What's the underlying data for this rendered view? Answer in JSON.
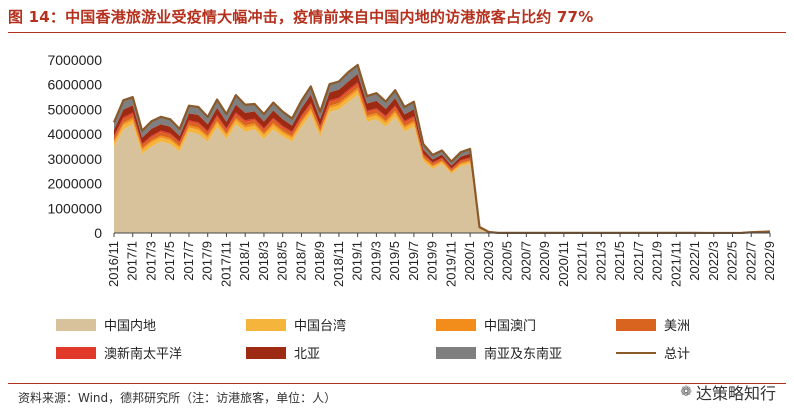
{
  "header": {
    "title": "图 14：中国香港旅游业受疫情大幅冲击，疫情前来自中国内地的访港旅客占比约 77%"
  },
  "footer": {
    "source": "资料来源：Wind，德邦研究所（注：访港旅客，单位：人）",
    "watermark": "达策略知行",
    "watermark_icon": "wechat-icon"
  },
  "chart_data": {
    "type": "area",
    "stacked": true,
    "ylim": [
      0,
      7000000
    ],
    "yticks": [
      0,
      1000000,
      2000000,
      3000000,
      4000000,
      5000000,
      6000000,
      7000000
    ],
    "ytick_labels": [
      "0",
      "1000000",
      "2000000",
      "3000000",
      "4000000",
      "5000000",
      "6000000",
      "7000000"
    ],
    "xtick_labels": [
      "2016/11",
      "2017/1",
      "2017/3",
      "2017/5",
      "2017/7",
      "2017/9",
      "2017/11",
      "2018/1",
      "2018/3",
      "2018/5",
      "2018/7",
      "2018/9",
      "2018/11",
      "2019/1",
      "2019/3",
      "2019/5",
      "2019/7",
      "2019/9",
      "2019/11",
      "2020/1",
      "2020/3",
      "2020/5",
      "2020/7",
      "2020/9",
      "2020/11",
      "2021/1",
      "2021/3",
      "2021/5",
      "2021/7",
      "2021/9",
      "2021/11",
      "2022/1",
      "2022/3",
      "2022/5",
      "2022/7",
      "2022/9"
    ],
    "legend_position": "bottom",
    "x": [
      "2016/11",
      "2016/12",
      "2017/1",
      "2017/2",
      "2017/3",
      "2017/4",
      "2017/5",
      "2017/6",
      "2017/7",
      "2017/8",
      "2017/9",
      "2017/10",
      "2017/11",
      "2017/12",
      "2018/1",
      "2018/2",
      "2018/3",
      "2018/4",
      "2018/5",
      "2018/6",
      "2018/7",
      "2018/8",
      "2018/9",
      "2018/10",
      "2018/11",
      "2018/12",
      "2019/1",
      "2019/2",
      "2019/3",
      "2019/4",
      "2019/5",
      "2019/6",
      "2019/7",
      "2019/8",
      "2019/9",
      "2019/10",
      "2019/11",
      "2019/12",
      "2020/1",
      "2020/2",
      "2020/3",
      "2020/4",
      "2020/5",
      "2020/6",
      "2020/7",
      "2020/8",
      "2020/9",
      "2020/10",
      "2020/11",
      "2020/12",
      "2021/1",
      "2021/2",
      "2021/3",
      "2021/4",
      "2021/5",
      "2021/6",
      "2021/7",
      "2021/8",
      "2021/9",
      "2021/10",
      "2021/11",
      "2021/12",
      "2022/1",
      "2022/2",
      "2022/3",
      "2022/4",
      "2022/5",
      "2022/6",
      "2022/7",
      "2022/8",
      "2022/9"
    ],
    "series": [
      {
        "name": "中国内地",
        "color": "#d8c29c",
        "values": [
          3500000,
          4200000,
          4400000,
          3200000,
          3500000,
          3700000,
          3600000,
          3300000,
          4100000,
          4000000,
          3700000,
          4300000,
          3800000,
          4400000,
          4100000,
          4200000,
          3800000,
          4200000,
          3900000,
          3700000,
          4300000,
          4800000,
          3900000,
          4900000,
          5000000,
          5300000,
          5600000,
          4500000,
          4600000,
          4300000,
          4700000,
          4100000,
          4300000,
          2900000,
          2600000,
          2800000,
          2400000,
          2700000,
          2800000,
          140000,
          25000,
          3000,
          2500,
          2500,
          2000,
          2000,
          2000,
          2500,
          3000,
          3000,
          2000,
          2000,
          2500,
          2500,
          2500,
          3000,
          3000,
          3000,
          3000,
          3000,
          3000,
          3000,
          2000,
          1000,
          500,
          500,
          1000,
          2000,
          20000,
          30000,
          40000
        ]
      },
      {
        "name": "中国台湾",
        "color": "#f5b53c",
        "values": [
          160000,
          170000,
          170000,
          160000,
          170000,
          160000,
          160000,
          150000,
          170000,
          180000,
          160000,
          160000,
          150000,
          160000,
          160000,
          150000,
          160000,
          160000,
          150000,
          140000,
          160000,
          170000,
          160000,
          160000,
          170000,
          170000,
          170000,
          160000,
          160000,
          150000,
          160000,
          150000,
          150000,
          110000,
          90000,
          80000,
          70000,
          80000,
          90000,
          20000,
          3000,
          300,
          300,
          300,
          300,
          300,
          300,
          300,
          300,
          300,
          300,
          300,
          300,
          300,
          300,
          300,
          300,
          300,
          300,
          300,
          300,
          300,
          300,
          300,
          300,
          300,
          300,
          300,
          2000,
          2500,
          3000
        ]
      },
      {
        "name": "中国澳门",
        "color": "#f28c1a",
        "values": [
          70000,
          90000,
          90000,
          80000,
          80000,
          80000,
          80000,
          70000,
          90000,
          90000,
          80000,
          90000,
          80000,
          90000,
          90000,
          90000,
          80000,
          90000,
          80000,
          80000,
          90000,
          90000,
          80000,
          90000,
          90000,
          100000,
          100000,
          90000,
          90000,
          90000,
          90000,
          80000,
          80000,
          60000,
          50000,
          50000,
          40000,
          50000,
          50000,
          10000,
          2000,
          300,
          300,
          300,
          300,
          300,
          300,
          300,
          300,
          300,
          300,
          300,
          300,
          300,
          300,
          300,
          300,
          300,
          300,
          300,
          300,
          300,
          300,
          300,
          300,
          300,
          300,
          300,
          1000,
          1500,
          2000
        ]
      },
      {
        "name": "美洲",
        "color": "#d9641f",
        "values": [
          140000,
          150000,
          140000,
          120000,
          130000,
          140000,
          140000,
          130000,
          140000,
          150000,
          130000,
          150000,
          140000,
          150000,
          140000,
          130000,
          140000,
          150000,
          140000,
          130000,
          140000,
          150000,
          130000,
          150000,
          150000,
          150000,
          150000,
          140000,
          140000,
          140000,
          150000,
          140000,
          140000,
          100000,
          80000,
          80000,
          70000,
          80000,
          80000,
          15000,
          2000,
          300,
          300,
          300,
          300,
          300,
          300,
          300,
          300,
          300,
          300,
          300,
          300,
          300,
          300,
          300,
          300,
          300,
          300,
          300,
          300,
          300,
          300,
          300,
          300,
          300,
          300,
          300,
          2000,
          2500,
          3000
        ]
      },
      {
        "name": "澳新南太平洋",
        "color": "#e23a2a",
        "values": [
          60000,
          80000,
          70000,
          50000,
          60000,
          60000,
          60000,
          50000,
          60000,
          60000,
          60000,
          70000,
          60000,
          80000,
          70000,
          60000,
          60000,
          60000,
          60000,
          50000,
          60000,
          60000,
          60000,
          70000,
          70000,
          80000,
          80000,
          60000,
          60000,
          60000,
          60000,
          60000,
          60000,
          40000,
          30000,
          30000,
          30000,
          40000,
          40000,
          8000,
          1000,
          200,
          200,
          200,
          200,
          200,
          200,
          200,
          200,
          200,
          200,
          200,
          200,
          200,
          200,
          200,
          200,
          200,
          200,
          200,
          200,
          200,
          200,
          200,
          200,
          200,
          200,
          200,
          1000,
          1500,
          2000
        ]
      },
      {
        "name": "北亚",
        "color": "#9e2a14",
        "values": [
          250000,
          300000,
          300000,
          250000,
          280000,
          260000,
          260000,
          230000,
          280000,
          300000,
          270000,
          300000,
          270000,
          320000,
          300000,
          290000,
          270000,
          300000,
          280000,
          250000,
          300000,
          330000,
          280000,
          320000,
          320000,
          330000,
          340000,
          290000,
          300000,
          280000,
          300000,
          270000,
          280000,
          170000,
          130000,
          130000,
          120000,
          140000,
          150000,
          20000,
          3000,
          300,
          300,
          300,
          300,
          300,
          300,
          300,
          300,
          300,
          300,
          300,
          300,
          300,
          300,
          300,
          300,
          300,
          300,
          300,
          300,
          300,
          300,
          300,
          300,
          300,
          300,
          300,
          2000,
          3000,
          4000
        ]
      },
      {
        "name": "南亚及东南亚",
        "color": "#7f7f7f",
        "values": [
          300000,
          380000,
          330000,
          280000,
          300000,
          300000,
          300000,
          280000,
          310000,
          320000,
          300000,
          330000,
          310000,
          380000,
          330000,
          300000,
          300000,
          320000,
          300000,
          280000,
          300000,
          330000,
          290000,
          330000,
          330000,
          380000,
          360000,
          300000,
          310000,
          300000,
          320000,
          300000,
          300000,
          220000,
          180000,
          170000,
          160000,
          180000,
          190000,
          30000,
          4000,
          500,
          500,
          500,
          500,
          500,
          500,
          500,
          500,
          500,
          500,
          500,
          500,
          500,
          500,
          500,
          500,
          500,
          500,
          500,
          500,
          500,
          500,
          500,
          500,
          500,
          500,
          500,
          3000,
          4000,
          6000
        ]
      }
    ],
    "total": {
      "name": "总计",
      "color": "#8b5a2b"
    }
  }
}
